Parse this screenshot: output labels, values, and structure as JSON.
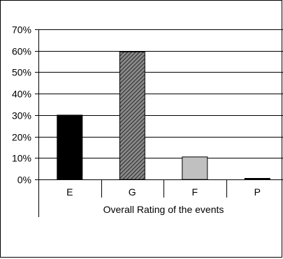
{
  "chart_data": {
    "type": "bar",
    "categories": [
      "E",
      "G",
      "F",
      "P"
    ],
    "values": [
      30,
      59.5,
      10.5,
      0.5
    ],
    "xlabel": "Overall Rating of the events",
    "ylabel": "",
    "ylim": [
      0,
      70
    ],
    "yticks": [
      "0%",
      "10%",
      "20%",
      "30%",
      "40%",
      "50%",
      "60%",
      "70%"
    ],
    "grid": true,
    "bar_styles": [
      {
        "fill": "#000000",
        "pattern": "solid"
      },
      {
        "fill": "#5a5a5a",
        "pattern": "diagonal-hatch"
      },
      {
        "fill": "#c0c0c0",
        "pattern": "solid"
      },
      {
        "fill": "#000000",
        "pattern": "solid"
      }
    ]
  }
}
